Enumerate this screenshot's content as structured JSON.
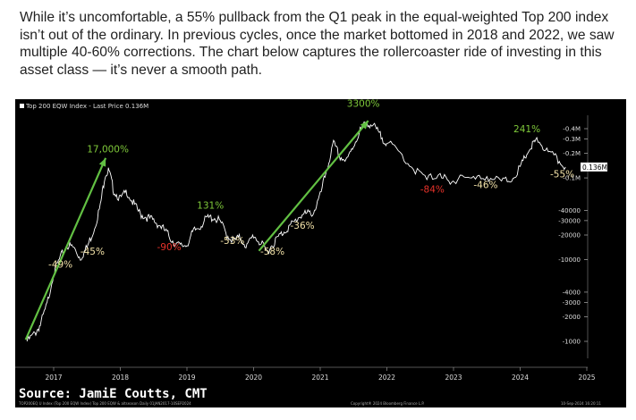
{
  "paragraph": "While it’s uncomfortable, a 55% pullback from the Q1 peak in the equal-weighted Top 200 index isn’t out of the ordinary. In previous cycles, once the market bottomed in 2018 and 2022, we saw multiple 40-60% corrections. The chart below captures the rollercoaster ride of investing in this asset class — it’s never a smooth path.",
  "chart_data": {
    "type": "line",
    "scale": "log",
    "legend": "Top 200 EQW Index - Last Price 0.136M",
    "last_price_label": "0.136M",
    "x_ticks": [
      "2017",
      "2018",
      "2019",
      "2020",
      "2021",
      "2022",
      "2023",
      "2024",
      "2025"
    ],
    "y_ticks": [
      {
        "label": "0.4M",
        "value": 400000
      },
      {
        "label": "0.3M",
        "value": 300000
      },
      {
        "label": "0.2M",
        "value": 200000
      },
      {
        "label": "0.1M",
        "value": 100000
      },
      {
        "label": "40000",
        "value": 40000
      },
      {
        "label": "30000",
        "value": 30000
      },
      {
        "label": "20000",
        "value": 20000
      },
      {
        "label": "10000",
        "value": 10000
      },
      {
        "label": "4000",
        "value": 4000
      },
      {
        "label": "3000",
        "value": 3000
      },
      {
        "label": "2000",
        "value": 2000
      },
      {
        "label": "1000",
        "value": 1000
      }
    ],
    "series": [
      {
        "name": "Top 200 EQW Index",
        "points": [
          [
            2016.6,
            1000
          ],
          [
            2016.72,
            1250
          ],
          [
            2016.8,
            1600
          ],
          [
            2016.9,
            2800
          ],
          [
            2017.0,
            7000
          ],
          [
            2017.1,
            10500
          ],
          [
            2017.2,
            15000
          ],
          [
            2017.3,
            14000
          ],
          [
            2017.4,
            10500
          ],
          [
            2017.5,
            14000
          ],
          [
            2017.6,
            23000
          ],
          [
            2017.7,
            45000
          ],
          [
            2017.77,
            110000
          ],
          [
            2017.83,
            122000
          ],
          [
            2017.9,
            70000
          ],
          [
            2018.0,
            55000
          ],
          [
            2018.1,
            68000
          ],
          [
            2018.2,
            48000
          ],
          [
            2018.3,
            36000
          ],
          [
            2018.4,
            33000
          ],
          [
            2018.5,
            30000
          ],
          [
            2018.6,
            26000
          ],
          [
            2018.7,
            21000
          ],
          [
            2018.8,
            16500
          ],
          [
            2018.9,
            14500
          ],
          [
            2019.0,
            15500
          ],
          [
            2019.1,
            22000
          ],
          [
            2019.2,
            26000
          ],
          [
            2019.3,
            32000
          ],
          [
            2019.4,
            33000
          ],
          [
            2019.5,
            29000
          ],
          [
            2019.6,
            20000
          ],
          [
            2019.7,
            17000
          ],
          [
            2019.8,
            18500
          ],
          [
            2019.9,
            14500
          ],
          [
            2020.0,
            20000
          ],
          [
            2020.1,
            16000
          ],
          [
            2020.2,
            12500
          ],
          [
            2020.3,
            16000
          ],
          [
            2020.4,
            20000
          ],
          [
            2020.5,
            24000
          ],
          [
            2020.6,
            28000
          ],
          [
            2020.7,
            35000
          ],
          [
            2020.8,
            36000
          ],
          [
            2020.9,
            38000
          ],
          [
            2021.0,
            60000
          ],
          [
            2021.1,
            130000
          ],
          [
            2021.2,
            260000
          ],
          [
            2021.3,
            180000
          ],
          [
            2021.4,
            160000
          ],
          [
            2021.5,
            250000
          ],
          [
            2021.6,
            380000
          ],
          [
            2021.7,
            480000
          ],
          [
            2021.8,
            430000
          ],
          [
            2021.9,
            330000
          ],
          [
            2022.0,
            270000
          ],
          [
            2022.2,
            200000
          ],
          [
            2022.4,
            130000
          ],
          [
            2022.6,
            95000
          ],
          [
            2022.8,
            115000
          ],
          [
            2022.95,
            80000
          ],
          [
            2023.1,
            110000
          ],
          [
            2023.3,
            95000
          ],
          [
            2023.5,
            105000
          ],
          [
            2023.7,
            90000
          ],
          [
            2023.85,
            95000
          ],
          [
            2024.0,
            130000
          ],
          [
            2024.1,
            200000
          ],
          [
            2024.2,
            260000
          ],
          [
            2024.27,
            290000
          ],
          [
            2024.4,
            210000
          ],
          [
            2024.55,
            170000
          ],
          [
            2024.68,
            136000
          ]
        ]
      }
    ],
    "annotations": [
      {
        "text": "17,000%",
        "x": 2017.5,
        "y": 205000,
        "color": "#7fc93a",
        "size": 10.5
      },
      {
        "text": "-45%",
        "x": 2017.4,
        "y": 11500,
        "color": "#f2e2a8",
        "size": 10.5
      },
      {
        "text": "-49%",
        "x": 2016.92,
        "y": 8000,
        "color": "#f2e2a8",
        "size": 10.5
      },
      {
        "text": "131%",
        "x": 2019.15,
        "y": 42000,
        "color": "#7fc93a",
        "size": 10.5
      },
      {
        "text": "-90%",
        "x": 2018.55,
        "y": 13000,
        "color": "#e8322a",
        "size": 10.5
      },
      {
        "text": "-53%",
        "x": 2019.5,
        "y": 15500,
        "color": "#f2e2a8",
        "size": 10.5
      },
      {
        "text": "-58%",
        "x": 2020.1,
        "y": 11500,
        "color": "#f2e2a8",
        "size": 10.5
      },
      {
        "text": "-36%",
        "x": 2020.55,
        "y": 24000,
        "color": "#f2e2a8",
        "size": 10.5
      },
      {
        "text": "3300%",
        "x": 2021.4,
        "y": 740000,
        "color": "#7fc93a",
        "size": 10.5
      },
      {
        "text": "-84%",
        "x": 2022.5,
        "y": 66000,
        "color": "#e8322a",
        "size": 10.5
      },
      {
        "text": "-46%",
        "x": 2023.3,
        "y": 75000,
        "color": "#f2e2a8",
        "size": 10.5
      },
      {
        "text": "241%",
        "x": 2023.9,
        "y": 360000,
        "color": "#7fc93a",
        "size": 10.5
      },
      {
        "text": "-55%",
        "x": 2024.45,
        "y": 102000,
        "color": "#f2e2a8",
        "size": 10.5
      }
    ],
    "arrows": [
      {
        "from": [
          2016.58,
          1050
        ],
        "to": [
          2017.78,
          175000
        ]
      },
      {
        "from": [
          2020.08,
          12800
        ],
        "to": [
          2021.72,
          500000
        ]
      }
    ]
  },
  "source": "Source: JamiE Coutts, CMT",
  "footer_left": "TOP200EQ U Index (Top 200 EQW Index) Top 200 EQW & altseason  Daily 01JAN2017-10SEP2024",
  "footer_mid": "Copyright® 2024 Bloomberg Finance L.P.",
  "footer_right": "10-Sep-2024 16:20:11",
  "colors": {
    "line": "#ffffff",
    "arrow": "#62c043",
    "grid": "#555555",
    "background": "#000000",
    "positive": "#7fc93a",
    "negative": "#e8322a",
    "neutral": "#f2e2a8"
  }
}
